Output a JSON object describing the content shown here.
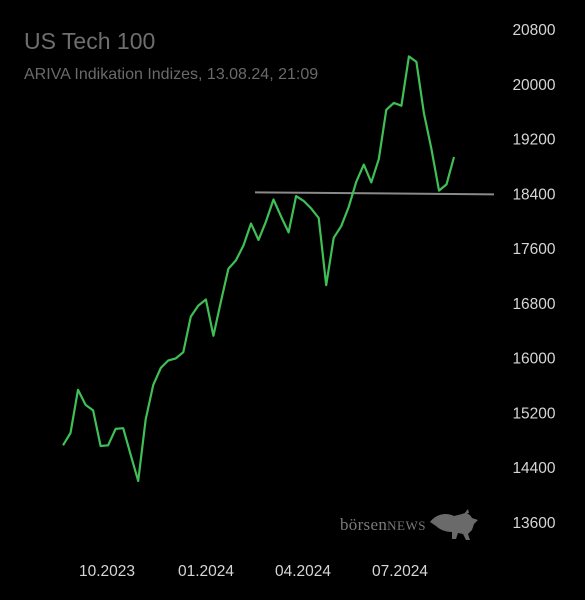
{
  "header": {
    "title": "US Tech 100",
    "subtitle": "ARIVA Indikation Indizes, 13.08.24, 21:09"
  },
  "watermark": {
    "brand_a": "börsen",
    "brand_b": "NEWS",
    "icon": "bull-icon"
  },
  "colors": {
    "background": "#000000",
    "line": "#3fbf55",
    "reference_line": "#8a8a8a",
    "text": "#d6d6d6"
  },
  "chart_data": {
    "type": "line",
    "title": "US Tech 100",
    "xlabel": "",
    "ylabel": "",
    "x_tick_labels": [
      "10.2023",
      "01.2024",
      "04.2024",
      "07.2024"
    ],
    "y_ticks": [
      13600,
      14400,
      15200,
      16000,
      16800,
      17600,
      18400,
      19200,
      20000,
      20800
    ],
    "ylim": [
      13600,
      20800
    ],
    "grid": false,
    "reference_line": {
      "value": 18400
    },
    "series": [
      {
        "values": [
          14720,
          14900,
          15530,
          15310,
          15230,
          14710,
          14720,
          14960,
          14970,
          14580,
          14200,
          15100,
          15600,
          15850,
          15960,
          15990,
          16080,
          16600,
          16760,
          16850,
          16320,
          16820,
          17300,
          17420,
          17640,
          17960,
          17720,
          17990,
          18310,
          18060,
          17830,
          18360,
          18290,
          18180,
          18040,
          17060,
          17750,
          17920,
          18200,
          18570,
          18820,
          18560,
          18900,
          19620,
          19720,
          19680,
          20400,
          20320,
          19570,
          19050,
          18440,
          18530,
          18930
        ]
      }
    ]
  }
}
